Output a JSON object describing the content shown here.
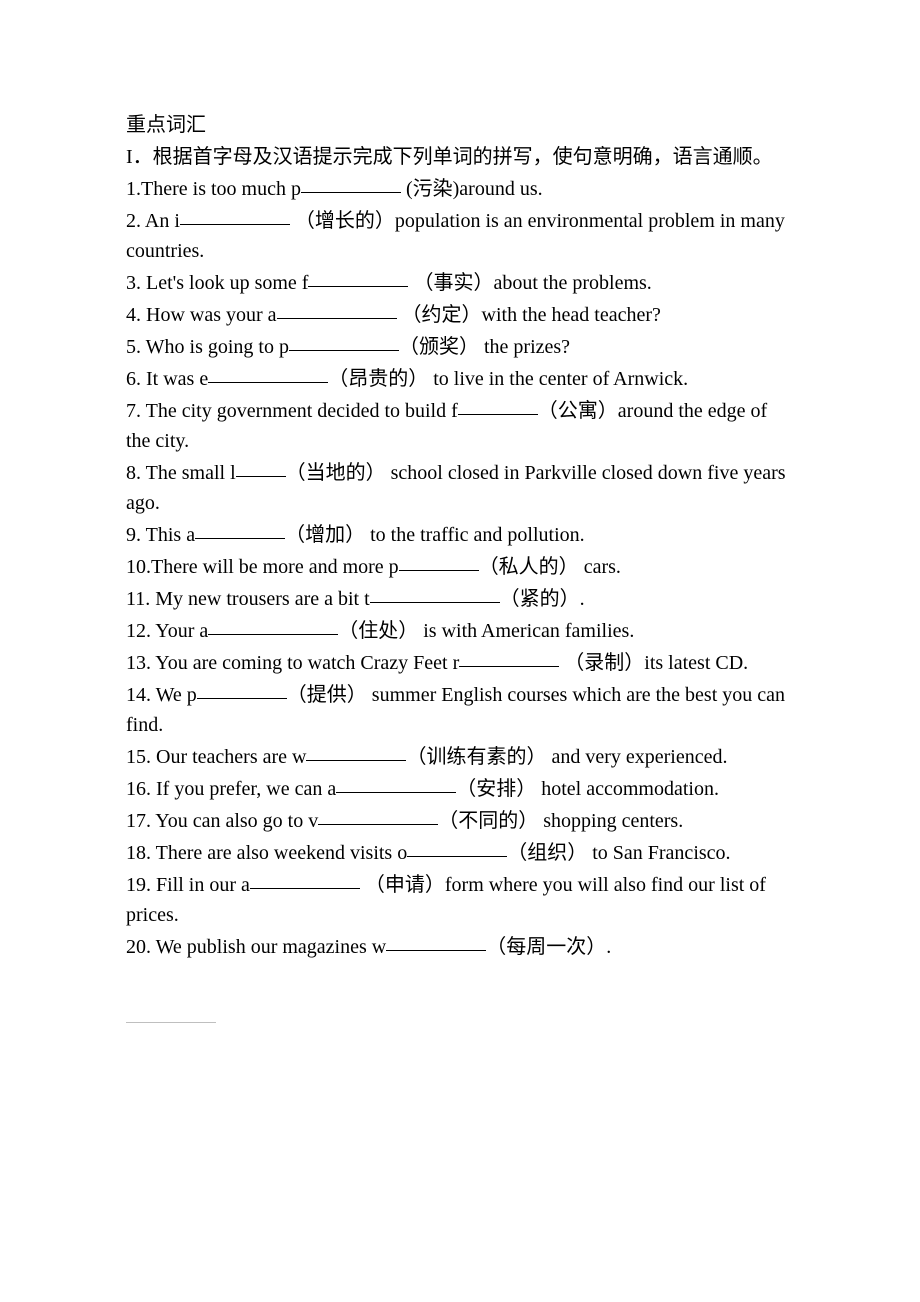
{
  "title": "重点词汇",
  "instruction": "I．根据首字母及汉语提示完成下列单词的拼写，使句意明确，语言通顺。",
  "items": [
    {
      "num": "1",
      "pre": "There is too much p",
      "blank_class": "w100",
      "hint": "(污染)",
      "post": "around us."
    },
    {
      "num": "2",
      "pre": "An i",
      "blank_class": "w110",
      "hint": "（增长的）",
      "post": "population is an environmental problem in many countries."
    },
    {
      "num": "3",
      "pre": "Let's look up some f",
      "blank_class": "w100",
      "hint": "（事实）",
      "post": "about the problems."
    },
    {
      "num": "4",
      "pre": "How was your a",
      "blank_class": "w120",
      "hint": "（约定）",
      "post": "with the head teacher?"
    },
    {
      "num": "5",
      "pre": "Who is going to p",
      "blank_class": "w110",
      "hint": "（颁奖）",
      "post": " the prizes?"
    },
    {
      "num": "6",
      "pre": "It was e",
      "blank_class": "w120",
      "hint": "（昂贵的）",
      "post": " to live in the center of Arnwick."
    },
    {
      "num": "7",
      "pre": "The city government decided to build f",
      "blank_class": "w80",
      "hint": "（公寓）",
      "post": "around the edge of the city."
    },
    {
      "num": "8",
      "pre": "The small l",
      "blank_class": "w50",
      "hint": "（当地的）",
      "post": " school closed in Parkville closed down five years ago."
    },
    {
      "num": "9",
      "pre": "This a",
      "blank_class": "w90",
      "hint": "（增加）",
      "post": " to the traffic and pollution."
    },
    {
      "num": "10",
      "pre": "There will be more and more p",
      "blank_class": "w80",
      "hint": "（私人的）",
      "post": " cars."
    },
    {
      "num": "11",
      "pre": "My new trousers are a bit t",
      "blank_class": "w130",
      "hint": "（紧的）",
      "post": "."
    },
    {
      "num": "12",
      "pre": "Your a",
      "blank_class": "w130",
      "hint": "（住处）",
      "post": " is with American families."
    },
    {
      "num": "13",
      "pre": "You are coming to watch Crazy Feet r",
      "blank_class": "w100",
      "hint": "（录制）",
      "post": "its latest CD."
    },
    {
      "num": "14",
      "pre": "We p",
      "blank_class": "w90",
      "hint": "（提供）",
      "post": " summer English courses which are the best you can find."
    },
    {
      "num": "15",
      "pre": "Our teachers are w",
      "blank_class": "w100",
      "hint": "（训练有素的）",
      "post": " and very experienced."
    },
    {
      "num": "16",
      "pre": "If you prefer, we can a",
      "blank_class": "w120",
      "hint": "（安排）",
      "post": " hotel accommodation."
    },
    {
      "num": "17",
      "pre": "You can also go to v",
      "blank_class": "w120",
      "hint": "（不同的）",
      "post": " shopping centers."
    },
    {
      "num": "18",
      "pre": "There are also weekend visits o",
      "blank_class": "w100",
      "hint": "（组织）",
      "post": " to San Francisco."
    },
    {
      "num": "19",
      "pre": "Fill in our a",
      "blank_class": "w110",
      "hint": "（申请）",
      "post": "form where you will also find our list of prices."
    },
    {
      "num": "20",
      "pre": "We publish our magazines w",
      "blank_class": "w100",
      "hint": "（每周一次）",
      "post": "."
    }
  ]
}
